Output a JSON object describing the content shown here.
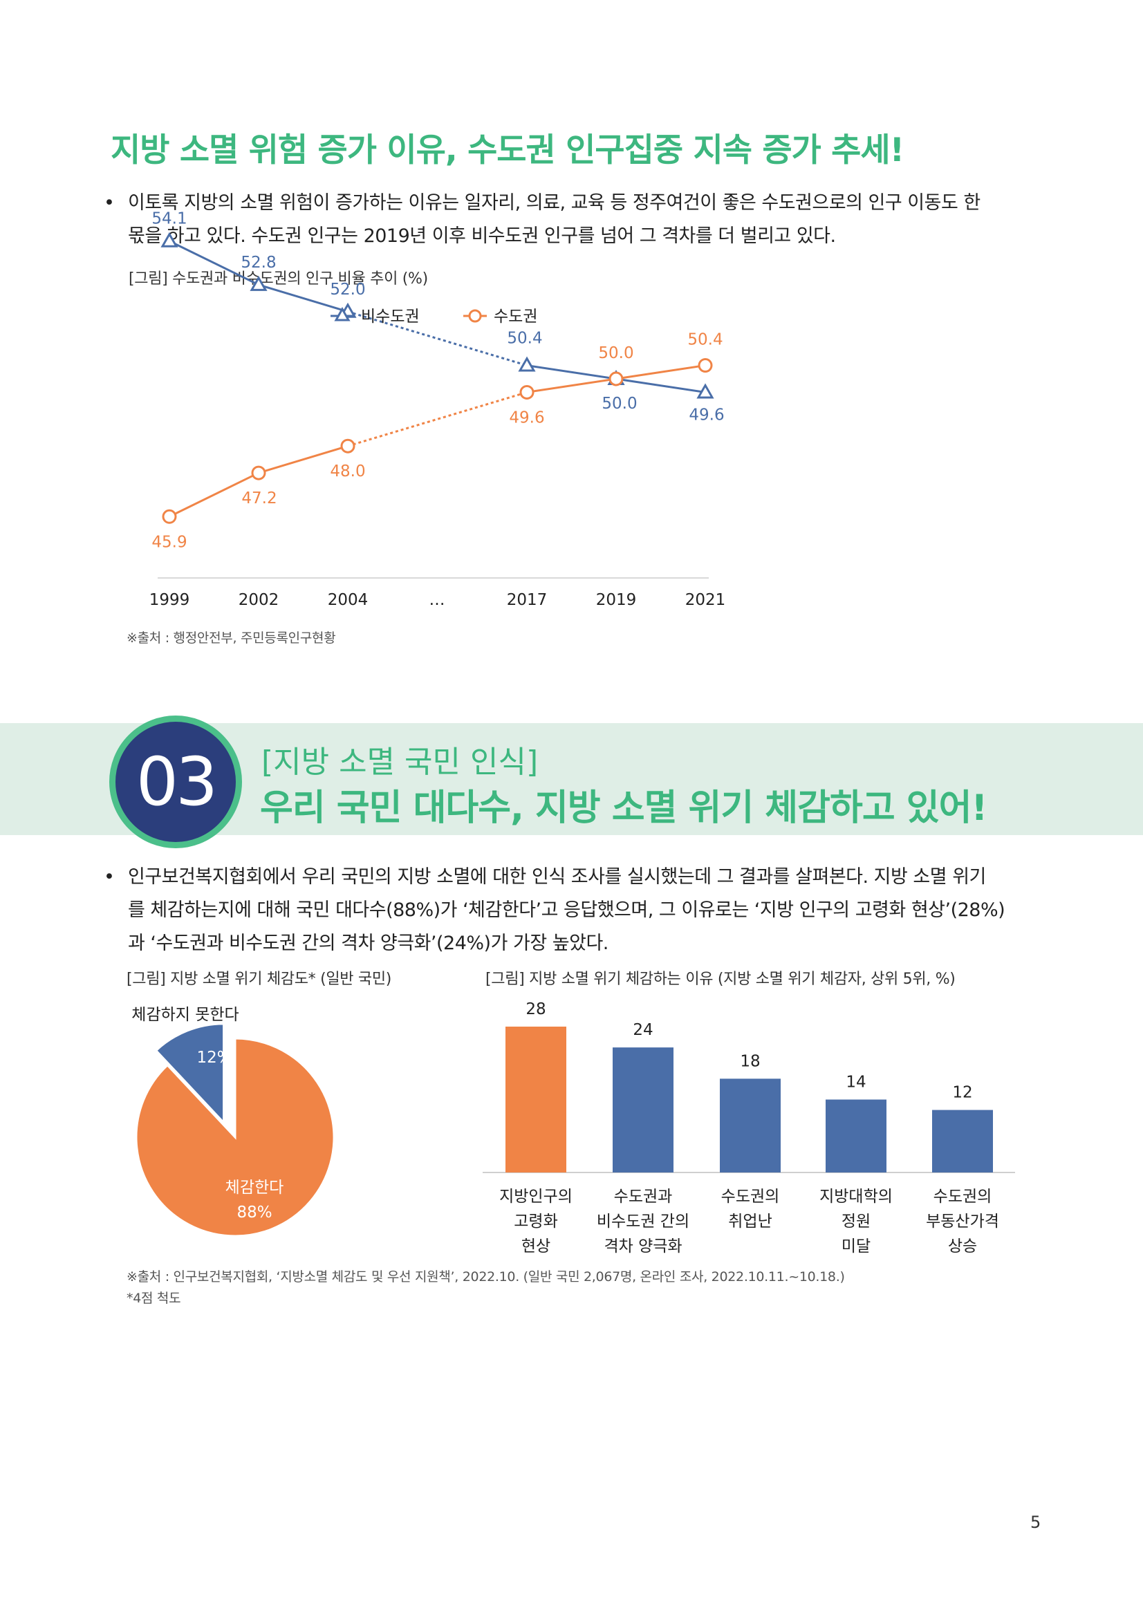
{
  "section1": {
    "heading": "지방 소멸 위험 증가 이유, 수도권 인구집중 지속 증가 추세!",
    "bullet": "•",
    "paragraph_lines": [
      "이토록 지방의 소멸 위험이 증가하는 이유는 일자리, 의료, 교육 등 정주여건이 좋은 수도권으로의 인구 이동도 한",
      "몫을 하고 있다. 수도권 인구는 2019년 이후 비수도권 인구를 넘어 그 격차를 더 벌리고 있다."
    ],
    "figure_caption": "[그림] 수도권과 비수도권의 인구 비율 추이 (%)",
    "source": "※출처 : 행정안전부, 주민등록인구현황"
  },
  "section3": {
    "number": "03",
    "subtitle": "[지방 소멸 국민 인식]",
    "title": "우리 국민 대다수, 지방 소멸 위기 체감하고 있어!",
    "bullet": "•",
    "paragraph_lines": [
      "인구보건복지협회에서 우리 국민의 지방 소멸에 대한 인식 조사를 실시했는데 그 결과를 살펴본다. 지방 소멸 위기",
      "를 체감하는지에 대해 국민 대다수(88%)가 ‘체감한다’고 응답했으며, 그 이유로는 ‘지방 인구의 고령화 현상’(28%)",
      "과 ‘수도권과 비수도권 간의 격차 양극화’(24%)가 가장 높았다."
    ],
    "pie_caption": "[그림] 지방 소멸 위기 체감도* (일반 국민)",
    "bar_caption": "[그림] 지방 소멸 위기 체감하는 이유 (지방 소멸 위기 체감자, 상위 5위, %)",
    "source": "※출처 : 인구보건복지협회, ‘지방소멸 체감도 및 우선 지원책’, 2022.10. (일반 국민 2,067명, 온라인 조사, 2022.10.11.~10.18.)",
    "footnote": "*4점 척도"
  },
  "page_number": "5",
  "colors": {
    "green": "#3db77f",
    "blue": "#4a6ea8",
    "orange": "#f08446",
    "navy": "#2b3e7c"
  },
  "chart_data": [
    {
      "type": "line",
      "categories": [
        "1999",
        "2002",
        "2004",
        "…",
        "2017",
        "2019",
        "2021"
      ],
      "series": [
        {
          "name": "비수도권",
          "values": [
            54.1,
            52.8,
            52.0,
            null,
            50.4,
            50.0,
            49.6
          ],
          "labels": [
            "54.1",
            "52.8",
            "52.0",
            null,
            "50.4",
            "50.0",
            "49.6"
          ],
          "color": "#4a6ea8",
          "marker": "triangle"
        },
        {
          "name": "수도권",
          "values": [
            45.9,
            47.2,
            48.0,
            null,
            49.6,
            50.0,
            50.4
          ],
          "labels": [
            "45.9",
            "47.2",
            "48.0",
            null,
            "49.6",
            "50.0",
            "50.4"
          ],
          "color": "#f08446",
          "marker": "circle"
        }
      ],
      "dashed_segment": "2004–2017",
      "legend_position": "top",
      "ylim": [
        45,
        55
      ],
      "grid": false
    },
    {
      "type": "pie",
      "slices": [
        {
          "label": "체감한다",
          "value": 88,
          "value_label": "88%",
          "color": "#f08446"
        },
        {
          "label": "체감하지 못한다",
          "value": 12,
          "value_label": "12%",
          "color": "#4a6ea8",
          "exploded": true
        }
      ]
    },
    {
      "type": "bar",
      "categories": [
        [
          "지방인구의",
          "고령화",
          "현상"
        ],
        [
          "수도권과",
          "비수도권 간의",
          "격차 양극화"
        ],
        [
          "수도권의",
          "취업난"
        ],
        [
          "지방대학의",
          "정원",
          "미달"
        ],
        [
          "수도권의",
          "부동산가격",
          "상승"
        ]
      ],
      "values": [
        28,
        24,
        18,
        14,
        12
      ],
      "value_labels": [
        "28",
        "24",
        "18",
        "14",
        "12"
      ],
      "colors": [
        "#f08446",
        "#4a6ea8",
        "#4a6ea8",
        "#4a6ea8",
        "#4a6ea8"
      ],
      "ylim": [
        0,
        28
      ]
    }
  ]
}
